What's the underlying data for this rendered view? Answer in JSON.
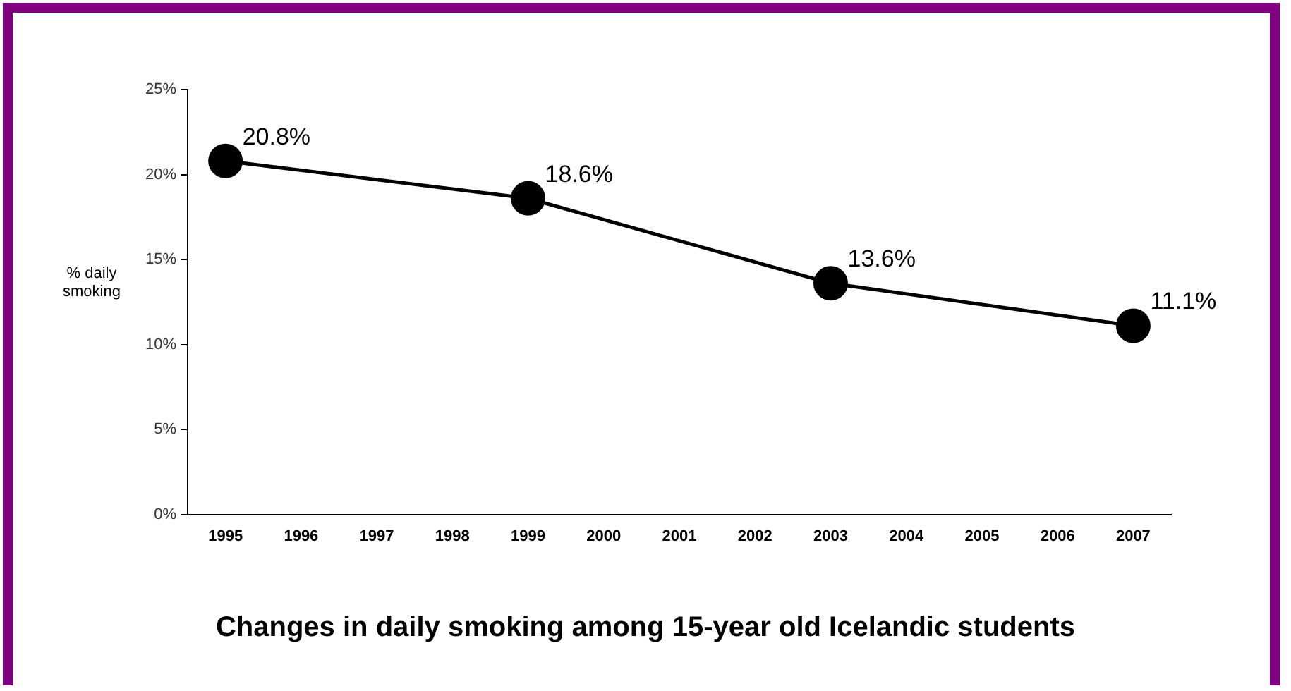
{
  "chart_data": {
    "type": "line",
    "title": "Changes in daily smoking among 15-year old Icelandic students",
    "ylabel": "% daily smoking",
    "categories": [
      "1995",
      "1996",
      "1997",
      "1998",
      "1999",
      "2000",
      "2001",
      "2002",
      "2003",
      "2004",
      "2005",
      "2006",
      "2007"
    ],
    "series": [
      {
        "color": "#000000",
        "values": [
          20.8,
          null,
          null,
          null,
          18.6,
          null,
          null,
          null,
          13.6,
          null,
          null,
          null,
          11.1
        ],
        "value_labels": [
          "20.8%",
          null,
          null,
          null,
          "18.6%",
          null,
          null,
          null,
          "13.6%",
          null,
          null,
          null,
          "11.1%"
        ]
      }
    ],
    "ylim": [
      0,
      25
    ],
    "yticks": [
      {
        "value": 0,
        "label": "0%"
      },
      {
        "value": 5,
        "label": "5%"
      },
      {
        "value": 10,
        "label": "10%"
      },
      {
        "value": 15,
        "label": "15%"
      },
      {
        "value": 20,
        "label": "20%"
      },
      {
        "value": 25,
        "label": "25%"
      }
    ],
    "grid": false,
    "legend": false,
    "marker": "circle",
    "line_style": "solid"
  }
}
